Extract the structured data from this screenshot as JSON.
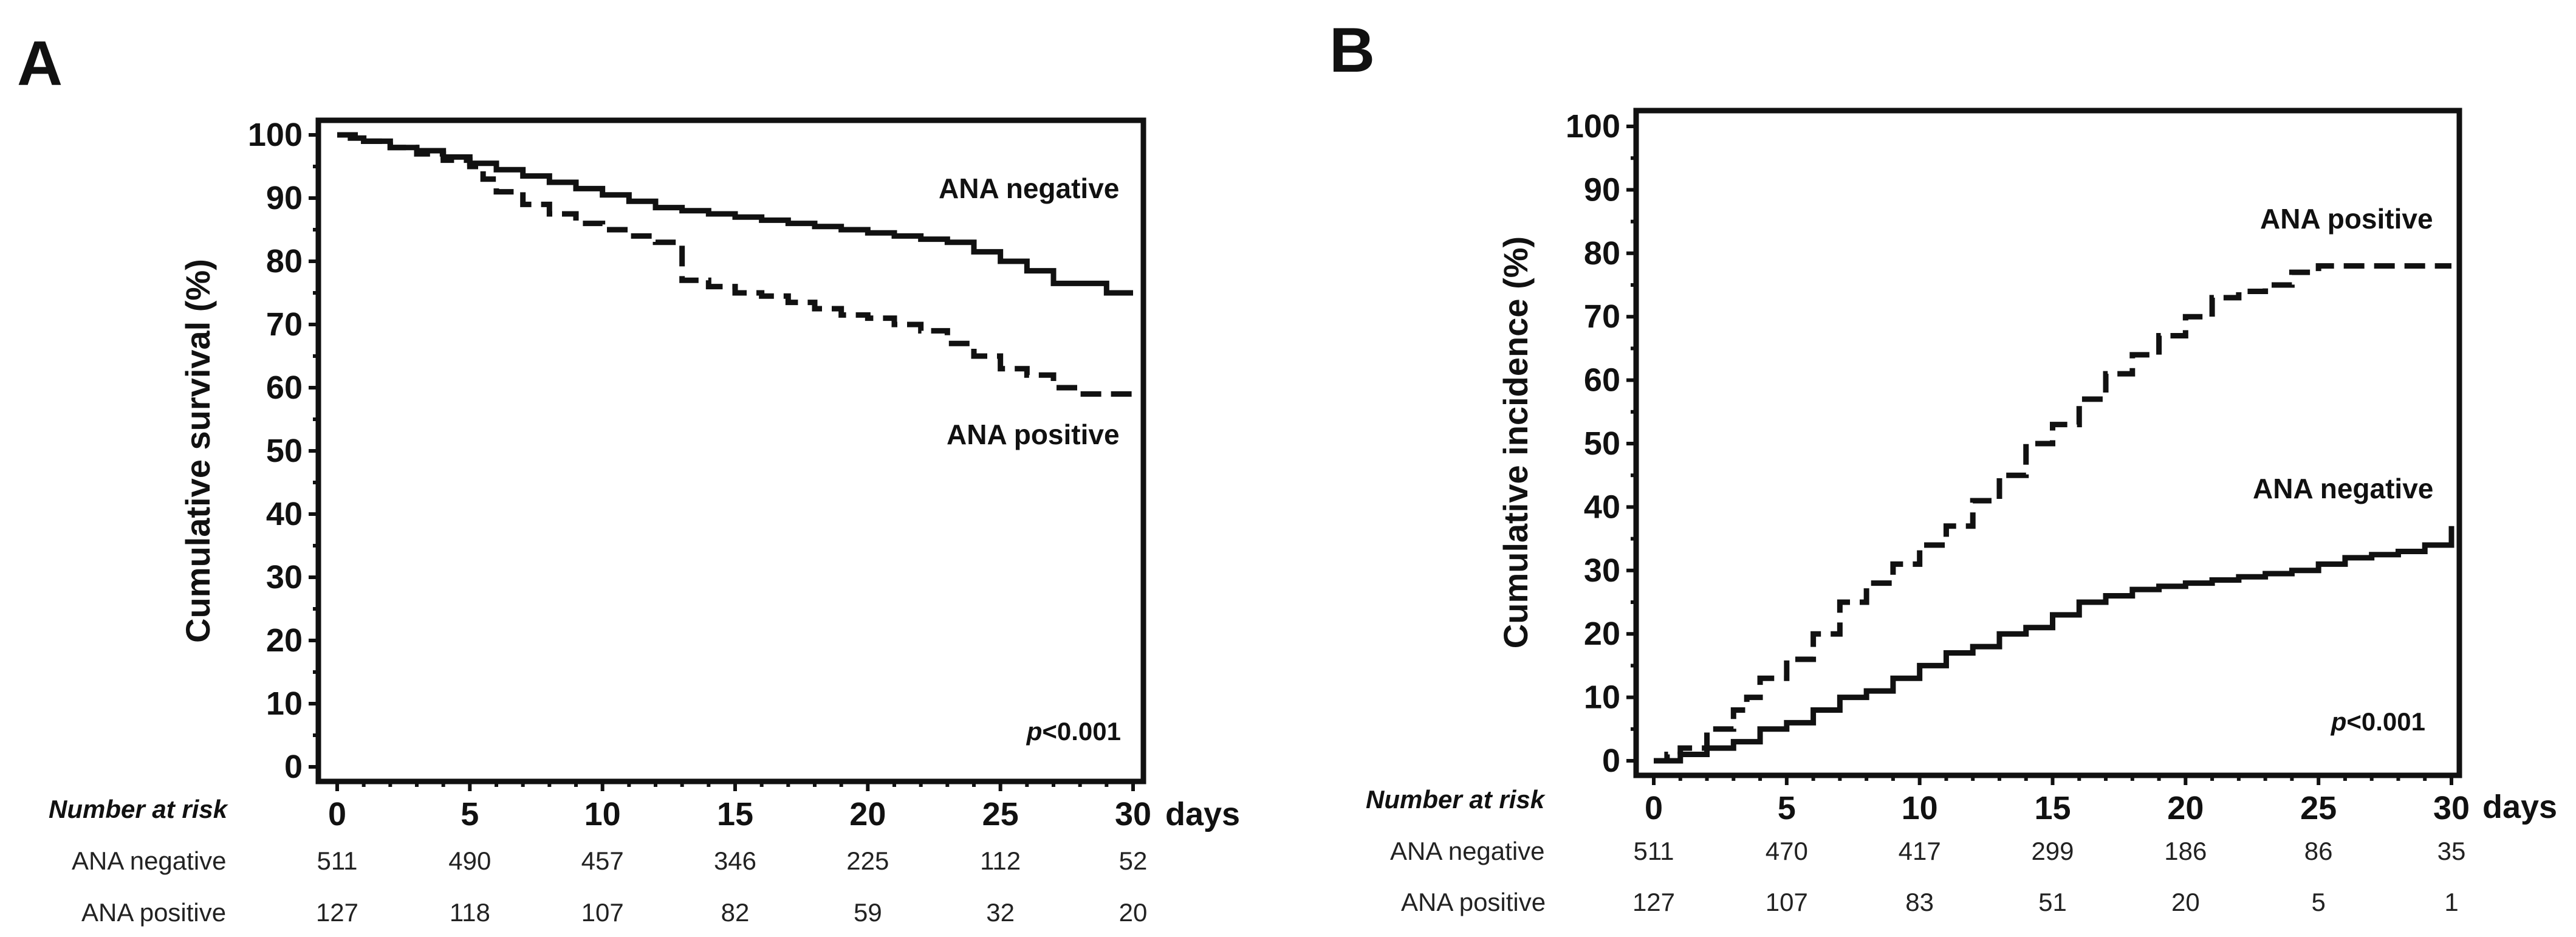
{
  "chart_data": [
    {
      "panel": "A",
      "type": "line",
      "subtype": "kaplan-meier",
      "ylabel": "Cumulative survival (%)",
      "xunit": "days",
      "xticks": [
        0,
        5,
        10,
        15,
        20,
        25,
        30
      ],
      "yticks": [
        0,
        10,
        20,
        30,
        40,
        50,
        60,
        70,
        80,
        90,
        100
      ],
      "xlim": [
        0,
        30
      ],
      "ylim": [
        0,
        100
      ],
      "p_value_text": "<0.001",
      "p_value_symbol": "p",
      "series": [
        {
          "name": "ANA negative",
          "style": "solid",
          "x": [
            0,
            0.5,
            1,
            2,
            3,
            4,
            5,
            6,
            7,
            8,
            9,
            10,
            11,
            12,
            13,
            14,
            15,
            16,
            17,
            18,
            19,
            20,
            21,
            22,
            23,
            24,
            25,
            26,
            27,
            28,
            29,
            30
          ],
          "y": [
            100,
            99.5,
            99,
            98,
            97.5,
            96.5,
            95.5,
            94.5,
            93.5,
            92.5,
            91.5,
            90.5,
            89.5,
            88.5,
            88,
            87.5,
            87,
            86.5,
            86,
            85.5,
            85,
            84.5,
            84,
            83.5,
            83,
            81.5,
            80,
            78.5,
            76.5,
            76.5,
            75,
            75
          ]
        },
        {
          "name": "ANA positive",
          "style": "dashed",
          "x": [
            0,
            1,
            2,
            3,
            4,
            5,
            5.5,
            6,
            7,
            8,
            9,
            10,
            11,
            12,
            13,
            14,
            15,
            16,
            17,
            18,
            19,
            20,
            21,
            22,
            23,
            24,
            25,
            26,
            27,
            28,
            29,
            30
          ],
          "y": [
            100,
            99,
            98,
            97,
            96,
            95,
            93,
            91,
            89,
            87.5,
            86,
            85,
            84,
            83,
            77,
            76,
            75,
            74.5,
            73.5,
            72.5,
            71.5,
            71,
            70,
            69,
            67,
            65,
            63,
            62,
            60,
            59,
            59,
            59
          ]
        }
      ],
      "risk_table": {
        "header": "Number at risk",
        "at_days": [
          0,
          5,
          10,
          15,
          20,
          25,
          30
        ],
        "rows": [
          {
            "label": "ANA negative",
            "values": [
              "511",
              "490",
              "457",
              "346",
              "225",
              "112",
              "52"
            ]
          },
          {
            "label": "ANA positive",
            "values": [
              "127",
              "118",
              "107",
              "82",
              "59",
              "32",
              "20"
            ]
          }
        ]
      }
    },
    {
      "panel": "B",
      "type": "line",
      "subtype": "cumulative-incidence",
      "ylabel": "Cumulative incidence (%)",
      "xunit": "days",
      "xticks": [
        0,
        5,
        10,
        15,
        20,
        25,
        30
      ],
      "yticks": [
        0,
        10,
        20,
        30,
        40,
        50,
        60,
        70,
        80,
        90,
        100
      ],
      "xlim": [
        0,
        30
      ],
      "ylim": [
        0,
        100
      ],
      "p_value_text": "<0.001",
      "p_value_symbol": "p",
      "series": [
        {
          "name": "ANA positive",
          "style": "dashed",
          "x": [
            0,
            0.5,
            1,
            2,
            3,
            3.5,
            4,
            5,
            6,
            7,
            8,
            9,
            10,
            11,
            12,
            13,
            14,
            15,
            16,
            17,
            18,
            19,
            20,
            21,
            22,
            23,
            24,
            25,
            26,
            27,
            28,
            29,
            30
          ],
          "y": [
            0,
            1,
            2,
            5,
            8,
            10,
            13,
            16,
            20,
            25,
            28,
            31,
            34,
            37,
            41,
            45,
            50,
            53,
            57,
            61,
            64,
            67,
            70,
            73,
            74,
            75,
            77,
            78,
            78,
            78,
            78,
            78,
            78
          ]
        },
        {
          "name": "ANA negative",
          "style": "solid",
          "x": [
            0,
            1,
            2,
            3,
            4,
            5,
            6,
            7,
            8,
            9,
            10,
            11,
            12,
            13,
            14,
            15,
            16,
            17,
            18,
            19,
            20,
            21,
            22,
            23,
            24,
            25,
            26,
            27,
            28,
            29,
            30
          ],
          "y": [
            0,
            1,
            2,
            3,
            5,
            6,
            8,
            10,
            11,
            13,
            15,
            17,
            18,
            20,
            21,
            23,
            25,
            26,
            27,
            27.5,
            28,
            28.5,
            29,
            29.5,
            30,
            31,
            32,
            32.5,
            33,
            34,
            37
          ]
        }
      ],
      "risk_table": {
        "header": "Number at risk",
        "at_days": [
          0,
          5,
          10,
          15,
          20,
          25,
          30
        ],
        "rows": [
          {
            "label": "ANA negative",
            "values": [
              "511",
              "470",
              "417",
              "299",
              "186",
              "86",
              "35"
            ]
          },
          {
            "label": "ANA positive",
            "values": [
              "127",
              "107",
              "83",
              "51",
              "20",
              "5",
              "1"
            ]
          }
        ]
      }
    }
  ]
}
